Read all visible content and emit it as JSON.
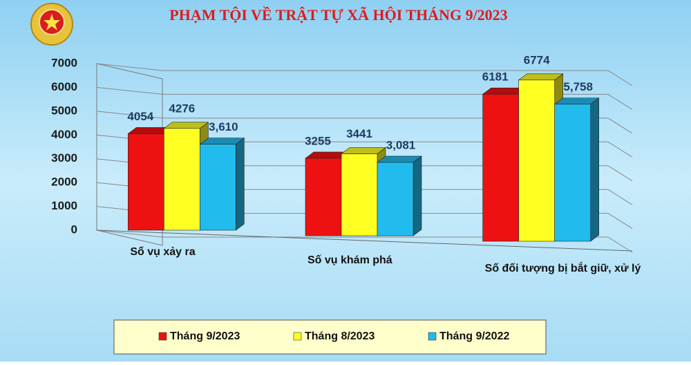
{
  "chart_data": {
    "type": "bar3d",
    "title": "PHẠM TỘI VỀ TRẬT TỰ XÃ HỘI THÁNG 9/2023",
    "categories": [
      "Số vụ xảy ra",
      "Số vụ khám phá",
      "Số đối tượng bị bắt giữ, xử lý"
    ],
    "series": [
      {
        "name": "Tháng 9/2023",
        "color": "#ee1111",
        "values": [
          4054,
          3255,
          6181
        ]
      },
      {
        "name": "Tháng 8/2023",
        "color": "#ffff22",
        "values": [
          4276,
          3441,
          6774
        ]
      },
      {
        "name": "Tháng 9/2022",
        "color": "#22bbee",
        "values": [
          3610,
          3081,
          5758
        ],
        "value_labels": [
          "3,610",
          "3,081",
          "5,758"
        ]
      }
    ],
    "ylim": [
      0,
      7000
    ],
    "yticks": [
      0,
      1000,
      2000,
      3000,
      4000,
      5000,
      6000,
      7000
    ],
    "grid": true,
    "legend": "bottom"
  }
}
